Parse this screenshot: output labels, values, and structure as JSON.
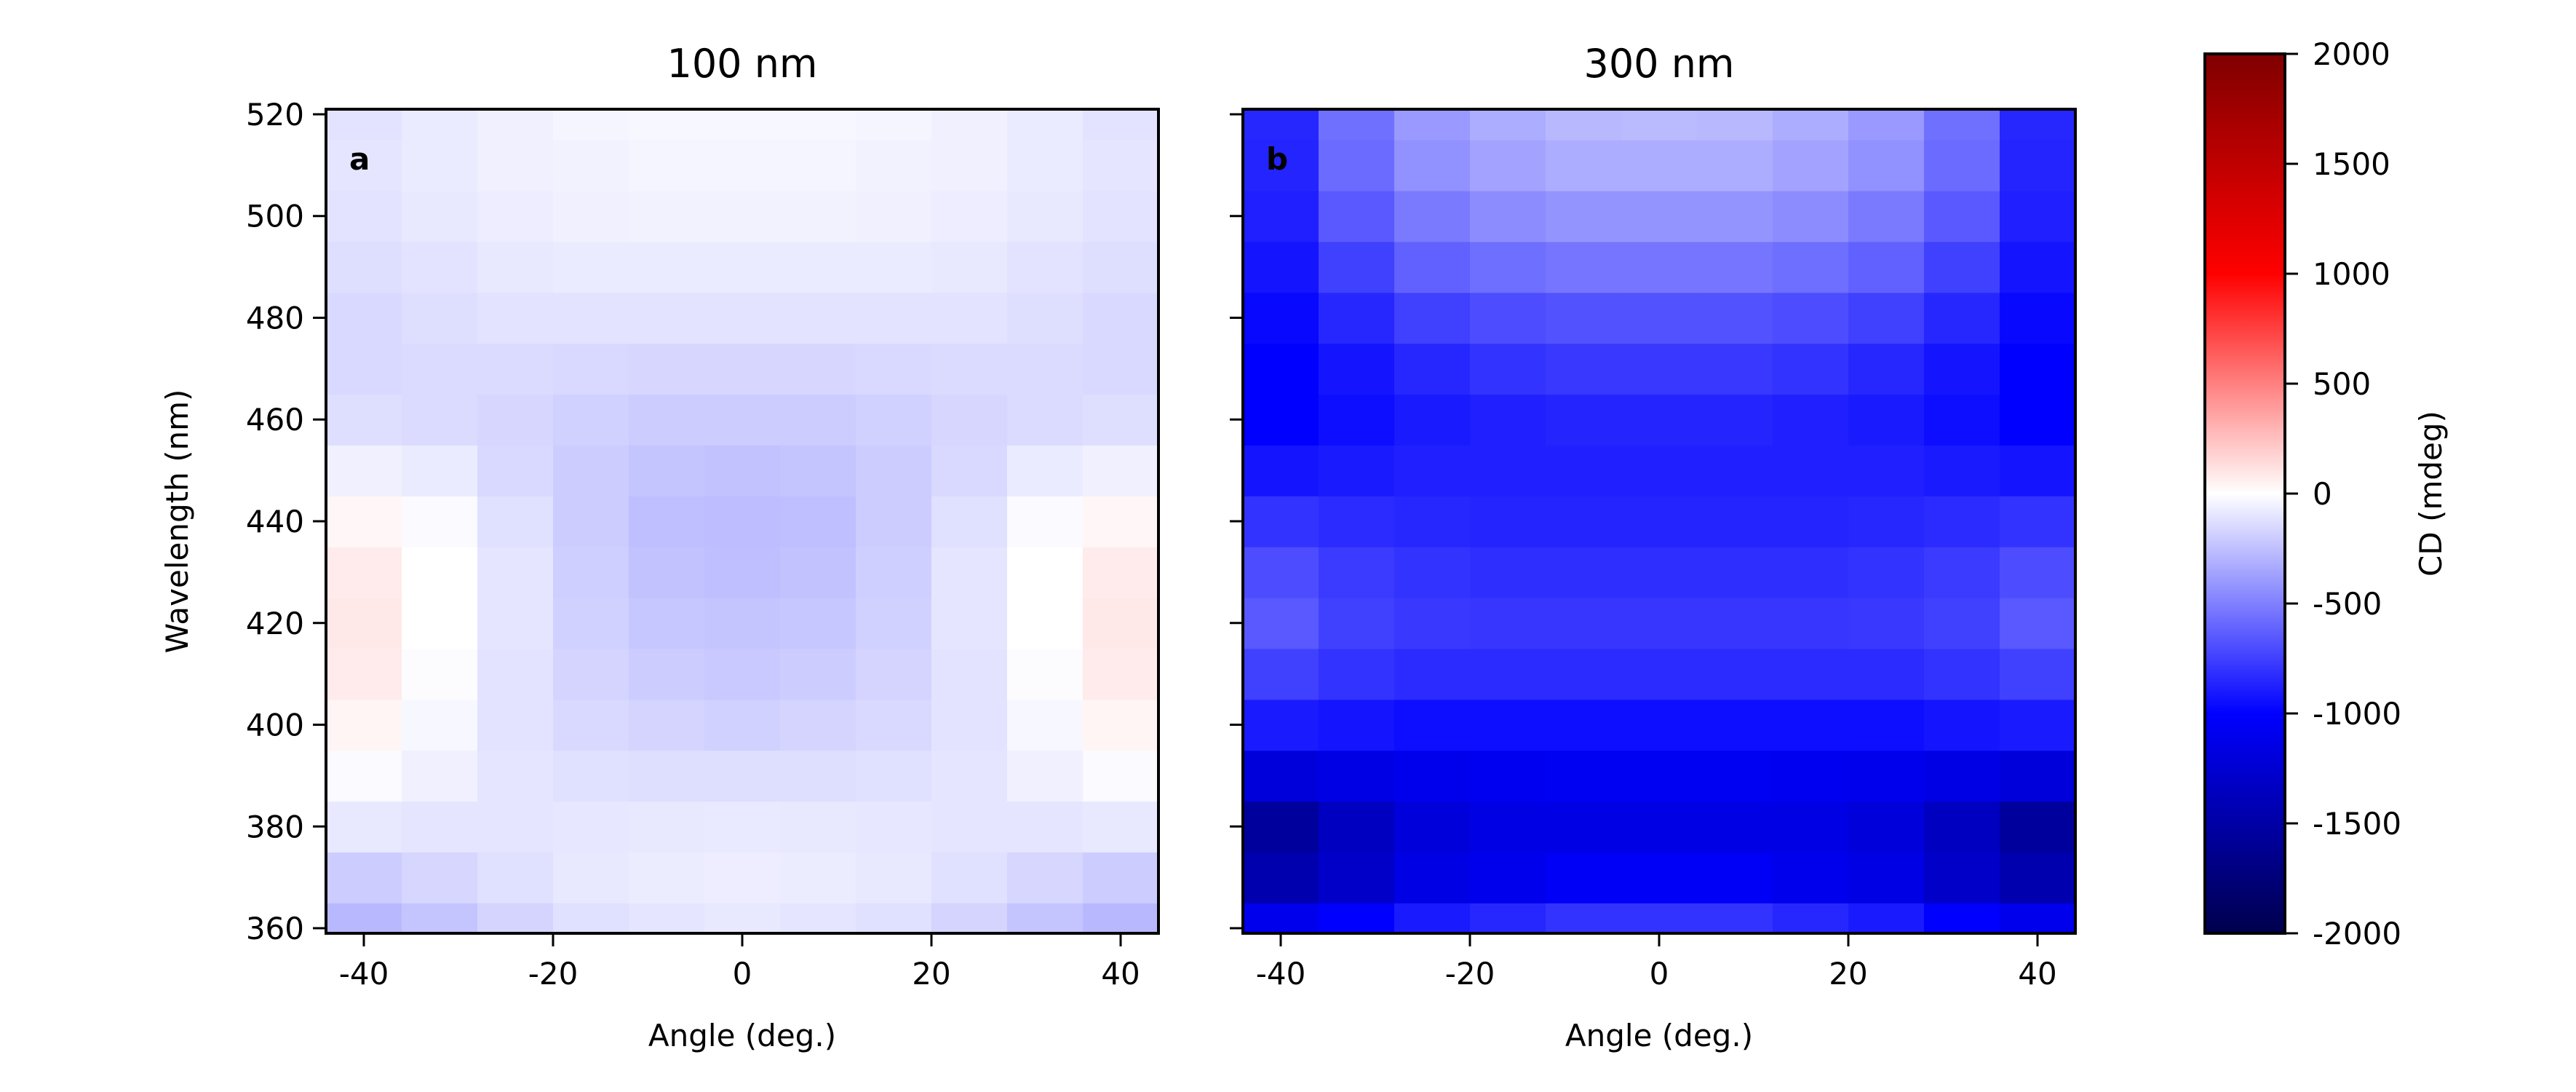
{
  "chart_data": {
    "type": "heatmap",
    "colorbar": {
      "label": "CD (mdeg)",
      "range": [
        -2000,
        2000
      ],
      "ticks": [
        -2000,
        -1500,
        -1000,
        -500,
        0,
        500,
        1000,
        1500,
        2000
      ],
      "tick_labels": [
        "-2000",
        "-1500",
        "-1000",
        "-500",
        "0",
        "500",
        "1000",
        "1500",
        "2000"
      ],
      "colormap": "seismic"
    },
    "panels": [
      {
        "title": "100 nm",
        "letter": "a",
        "xlabel": "Angle (deg.)",
        "ylabel": "Wavelength (nm)",
        "x_ticks": [
          -40,
          -20,
          0,
          20,
          40
        ],
        "y_ticks": [
          360,
          380,
          400,
          420,
          440,
          460,
          480,
          500,
          520
        ],
        "y_tick_labels_shown": true,
        "xlim": [
          -44,
          44
        ],
        "ylim": [
          359,
          521
        ],
        "x": [
          -40,
          -32,
          -24,
          -16,
          -8,
          0,
          8,
          16,
          24,
          32,
          40
        ],
        "y": [
          360,
          370,
          380,
          390,
          400,
          410,
          420,
          430,
          440,
          450,
          460,
          470,
          480,
          490,
          500,
          510,
          520
        ],
        "z": [
          [
            -280,
            -230,
            -170,
            -120,
            -100,
            -90,
            -100,
            -120,
            -170,
            -230,
            -280
          ],
          [
            -200,
            -160,
            -120,
            -90,
            -75,
            -70,
            -75,
            -90,
            -120,
            -160,
            -200
          ],
          [
            -90,
            -100,
            -100,
            -95,
            -90,
            -85,
            -90,
            -95,
            -100,
            -100,
            -90
          ],
          [
            -20,
            -60,
            -100,
            -120,
            -130,
            -130,
            -130,
            -120,
            -100,
            -60,
            -20
          ],
          [
            40,
            -30,
            -110,
            -150,
            -170,
            -180,
            -170,
            -150,
            -110,
            -30,
            40
          ],
          [
            80,
            -10,
            -110,
            -170,
            -200,
            -210,
            -200,
            -170,
            -110,
            -10,
            80
          ],
          [
            90,
            0,
            -100,
            -180,
            -220,
            -230,
            -220,
            -180,
            -100,
            0,
            90
          ],
          [
            80,
            0,
            -100,
            -190,
            -240,
            -250,
            -240,
            -190,
            -100,
            0,
            80
          ],
          [
            30,
            -20,
            -120,
            -200,
            -250,
            -260,
            -250,
            -200,
            -120,
            -20,
            30
          ],
          [
            -60,
            -80,
            -150,
            -200,
            -230,
            -240,
            -230,
            -200,
            -150,
            -80,
            -60
          ],
          [
            -130,
            -140,
            -160,
            -180,
            -200,
            -200,
            -200,
            -180,
            -160,
            -140,
            -130
          ],
          [
            -150,
            -140,
            -140,
            -150,
            -160,
            -160,
            -160,
            -150,
            -140,
            -140,
            -150
          ],
          [
            -150,
            -130,
            -110,
            -110,
            -110,
            -110,
            -110,
            -110,
            -110,
            -130,
            -150
          ],
          [
            -130,
            -110,
            -90,
            -80,
            -80,
            -80,
            -80,
            -80,
            -90,
            -110,
            -130
          ],
          [
            -110,
            -90,
            -70,
            -60,
            -50,
            -50,
            -50,
            -60,
            -70,
            -90,
            -110
          ],
          [
            -100,
            -80,
            -60,
            -50,
            -40,
            -40,
            -40,
            -50,
            -60,
            -80,
            -100
          ],
          [
            -110,
            -80,
            -60,
            -40,
            -30,
            -30,
            -30,
            -40,
            -60,
            -80,
            -110
          ]
        ]
      },
      {
        "title": "300 nm",
        "letter": "b",
        "xlabel": "Angle (deg.)",
        "ylabel": "",
        "x_ticks": [
          -40,
          -20,
          0,
          20,
          40
        ],
        "y_ticks": [
          360,
          380,
          400,
          420,
          440,
          460,
          480,
          500,
          520
        ],
        "y_tick_labels_shown": false,
        "xlim": [
          -44,
          44
        ],
        "ylim": [
          359,
          521
        ],
        "x": [
          -40,
          -32,
          -24,
          -16,
          -8,
          0,
          8,
          16,
          24,
          32,
          40
        ],
        "y": [
          360,
          370,
          380,
          390,
          400,
          410,
          420,
          430,
          440,
          450,
          460,
          470,
          480,
          490,
          500,
          510,
          520
        ],
        "z": [
          [
            -1100,
            -1000,
            -900,
            -850,
            -800,
            -800,
            -800,
            -850,
            -900,
            -1000,
            -1100
          ],
          [
            -1450,
            -1300,
            -1150,
            -1100,
            -1050,
            -1050,
            -1050,
            -1100,
            -1150,
            -1300,
            -1450
          ],
          [
            -1550,
            -1350,
            -1200,
            -1150,
            -1150,
            -1150,
            -1150,
            -1150,
            -1200,
            -1350,
            -1550
          ],
          [
            -1200,
            -1150,
            -1100,
            -1080,
            -1070,
            -1070,
            -1070,
            -1080,
            -1100,
            -1150,
            -1200
          ],
          [
            -900,
            -920,
            -950,
            -950,
            -950,
            -950,
            -950,
            -950,
            -950,
            -920,
            -900
          ],
          [
            -750,
            -800,
            -830,
            -830,
            -830,
            -830,
            -830,
            -830,
            -830,
            -800,
            -750
          ],
          [
            -650,
            -750,
            -780,
            -790,
            -790,
            -790,
            -790,
            -790,
            -780,
            -750,
            -650
          ],
          [
            -700,
            -770,
            -800,
            -820,
            -820,
            -820,
            -820,
            -820,
            -800,
            -770,
            -700
          ],
          [
            -800,
            -830,
            -850,
            -860,
            -860,
            -860,
            -860,
            -860,
            -850,
            -830,
            -800
          ],
          [
            -920,
            -900,
            -880,
            -880,
            -880,
            -880,
            -880,
            -880,
            -880,
            -900,
            -920
          ],
          [
            -1000,
            -950,
            -900,
            -880,
            -860,
            -860,
            -860,
            -880,
            -900,
            -950,
            -1000
          ],
          [
            -1000,
            -920,
            -850,
            -800,
            -780,
            -780,
            -780,
            -800,
            -850,
            -920,
            -1000
          ],
          [
            -970,
            -850,
            -750,
            -700,
            -680,
            -680,
            -680,
            -700,
            -750,
            -850,
            -970
          ],
          [
            -920,
            -750,
            -620,
            -570,
            -540,
            -540,
            -540,
            -570,
            -620,
            -750,
            -920
          ],
          [
            -880,
            -650,
            -520,
            -450,
            -420,
            -420,
            -420,
            -450,
            -520,
            -650,
            -880
          ],
          [
            -860,
            -580,
            -430,
            -360,
            -320,
            -320,
            -320,
            -360,
            -430,
            -580,
            -860
          ],
          [
            -850,
            -560,
            -400,
            -320,
            -280,
            -270,
            -280,
            -320,
            -400,
            -560,
            -850
          ]
        ]
      }
    ]
  }
}
